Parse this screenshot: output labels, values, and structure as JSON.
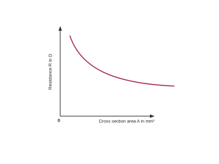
{
  "y_axis_label": "Resistance R in Ω",
  "x_axis_label": "Cross section area A in mm²",
  "origin_label": "0"
}
